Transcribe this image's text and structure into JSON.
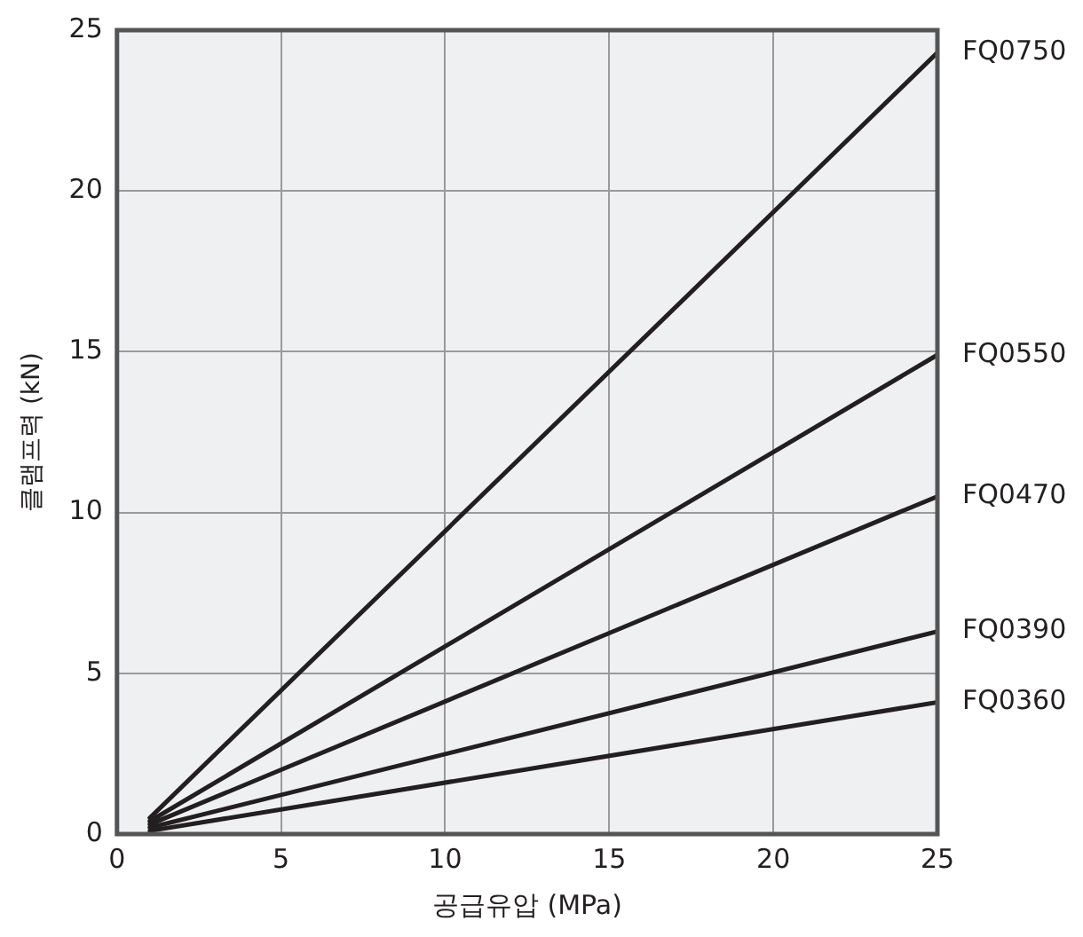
{
  "chart_data": {
    "type": "line",
    "xlabel": "공급유압 (MPa)",
    "ylabel": "클램프력 (kN)",
    "x": [
      1,
      25
    ],
    "xlim": [
      0,
      25
    ],
    "xticks": [
      0,
      5,
      10,
      15,
      20,
      25
    ],
    "ylim": [
      0,
      25
    ],
    "yticks": [
      0,
      5,
      10,
      15,
      20,
      25
    ],
    "grid": true,
    "legend": false,
    "marker": "none",
    "line_style": "solid",
    "series": [
      {
        "name": "FQ0750",
        "color": "#231f20",
        "values": [
          0.5,
          24.3
        ]
      },
      {
        "name": "FQ0550",
        "color": "#231f20",
        "values": [
          0.4,
          14.9
        ]
      },
      {
        "name": "FQ0470",
        "color": "#231f20",
        "values": [
          0.3,
          10.5
        ]
      },
      {
        "name": "FQ0390",
        "color": "#231f20",
        "values": [
          0.2,
          6.3
        ]
      },
      {
        "name": "FQ0360",
        "color": "#231f20",
        "values": [
          0.1,
          4.1
        ]
      }
    ]
  }
}
